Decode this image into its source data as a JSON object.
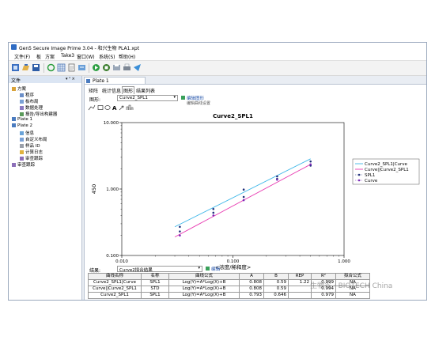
{
  "window": {
    "title": "Gen5 Secure Image Prime 3.04 - 和兴生物 PLA1.xpt"
  },
  "menu": [
    "文件(F)",
    "板",
    "方案",
    "Take3",
    "窗口(W)",
    "系统(S)",
    "帮助(H)"
  ],
  "left_panel": {
    "title": "文件",
    "controls": "▾ ᵃ ×",
    "tree": [
      {
        "label": "方案",
        "level": 1
      },
      {
        "label": "程序",
        "level": 2
      },
      {
        "label": "板布局",
        "level": 2
      },
      {
        "label": "数据处理",
        "level": 2
      },
      {
        "label": "报告/导出构建器",
        "level": 2
      },
      {
        "label": "Plate 1",
        "level": 1
      },
      {
        "label": "Plate 2",
        "level": 1
      },
      {
        "label": "信息",
        "level": 2
      },
      {
        "label": "自定义布局",
        "level": 2
      },
      {
        "label": "样品 ID",
        "level": 2
      },
      {
        "label": "计算日志",
        "level": 2
      },
      {
        "label": "审查跟踪",
        "level": 2
      },
      {
        "label": "审查跟踪",
        "level": 1
      }
    ]
  },
  "doc": {
    "tab": "Plate 1",
    "subtabs": [
      "矩阵",
      "统计信息",
      "图形",
      "结果列表"
    ],
    "active_subtab": 2,
    "graph_label": "图形:",
    "graph_select": "Curve2_SPL1",
    "edit_graph": "编辑图形",
    "edit_tooltip": "编辑曲线设置",
    "result_label": "结果:",
    "result_select": "Curve2拟合结果",
    "edit_result": "编辑"
  },
  "chart_data": {
    "type": "scatter",
    "title": "Curve2_SPL1",
    "xlabel": "<浓度/稀释度>",
    "ylabel": "450",
    "xscale": "log",
    "yscale": "log",
    "xlim": [
      0.01,
      1.0
    ],
    "ylim": [
      0.1,
      10.0
    ],
    "xticks": [
      "0.010",
      "0.100",
      "1.000"
    ],
    "yticks": [
      "10.000",
      "1.000",
      "0.100"
    ],
    "grid": false,
    "legend_position": "right",
    "series": [
      {
        "name": "Curve2_SPL1|Curve",
        "kind": "line",
        "color": "#3fb7e8",
        "x": [
          0.03,
          0.5
        ],
        "y": [
          0.27,
          2.85
        ]
      },
      {
        "name": "Curve||Curve2_SPL1",
        "kind": "line",
        "color": "#e83ab1",
        "x": [
          0.03,
          0.5
        ],
        "y": [
          0.19,
          2.35
        ]
      },
      {
        "name": "SPL1",
        "kind": "points",
        "color": "#1f2e7a",
        "marker": "circle",
        "x": [
          0.0333,
          0.0333,
          0.0667,
          0.0667,
          0.125,
          0.125,
          0.25,
          0.25,
          0.5,
          0.5
        ],
        "y": [
          0.27,
          0.23,
          0.5,
          0.44,
          0.98,
          0.76,
          1.55,
          1.42,
          2.6,
          2.25
        ]
      },
      {
        "name": "Curve",
        "kind": "points",
        "color": "#7a2ab8",
        "marker": "circle",
        "x": [
          0.0333,
          0.0667,
          0.125,
          0.25,
          0.5
        ],
        "y": [
          0.2,
          0.4,
          0.68,
          1.38,
          2.35
        ]
      }
    ]
  },
  "results_table": {
    "headers": [
      "曲线名称",
      "名称",
      "曲线公式",
      "A",
      "B",
      "REP",
      "R²",
      "拟合公式"
    ],
    "rows": [
      [
        "Curve2_SPL1|Curve",
        "SPL1",
        "Log(Y)=A*Log(X)+B",
        "0.808",
        "0.59",
        "1.22",
        "0.999",
        "NA"
      ],
      [
        "Curve||Curve2_SPL1",
        "STD",
        "Log(Y)=A*Log(X)+B",
        "0.808",
        "0.59",
        "",
        "0.994",
        "NA"
      ],
      [
        "Curve2_SPL1",
        "SPL1",
        "Log(Y)=A*Log(X)+B",
        "0.793",
        "0.646",
        "",
        "0.979",
        "NA"
      ]
    ]
  },
  "watermark": "生物谷 · BIOTECH China",
  "colors": {
    "accent": "#2f6cc4",
    "panel_header": "#dbe5f3",
    "link": "#1d4fa8"
  }
}
